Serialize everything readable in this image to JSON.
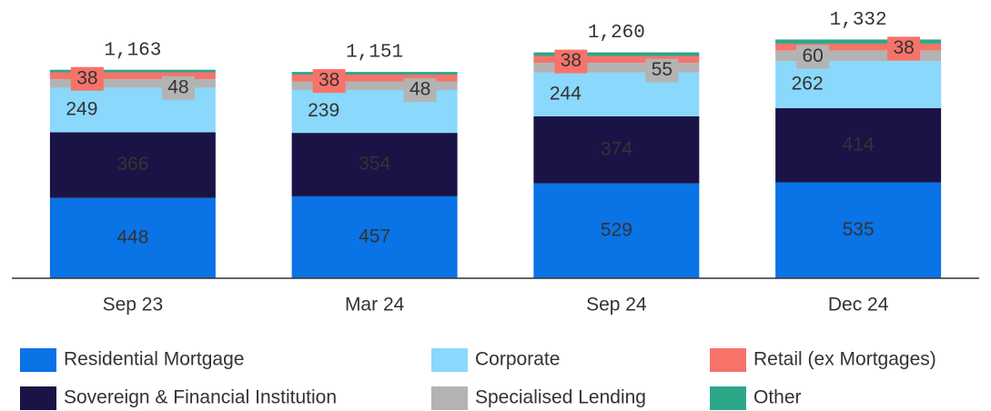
{
  "chart_data": {
    "type": "stacked-bar",
    "categories": [
      "Sep 23",
      "Mar 24",
      "Sep 24",
      "Dec 24"
    ],
    "series": [
      {
        "name": "Residential Mortgage",
        "color": "#0a73e6",
        "values": [
          448,
          457,
          529,
          535
        ]
      },
      {
        "name": "Sovereign & Financial Institution",
        "color": "#1a1446",
        "values": [
          366,
          354,
          374,
          414
        ]
      },
      {
        "name": "Corporate",
        "color": "#8ad8fb",
        "values": [
          249,
          239,
          244,
          262
        ]
      },
      {
        "name": "Specialised Lending",
        "color": "#b3b3b3",
        "values": [
          48,
          48,
          55,
          60
        ]
      },
      {
        "name": "Retail (ex Mortgages)",
        "color": "#f7736a",
        "values": [
          38,
          38,
          38,
          38
        ]
      },
      {
        "name": "Other",
        "color": "#2ba88a",
        "values": [
          14,
          15,
          20,
          23
        ]
      }
    ],
    "totals": {
      "values": [
        1163,
        1151,
        1260,
        1332
      ],
      "value_labels": [
        "1,163",
        "1,151",
        "1,260",
        "1,332"
      ]
    },
    "ylim": [
      0,
      1400
    ]
  }
}
